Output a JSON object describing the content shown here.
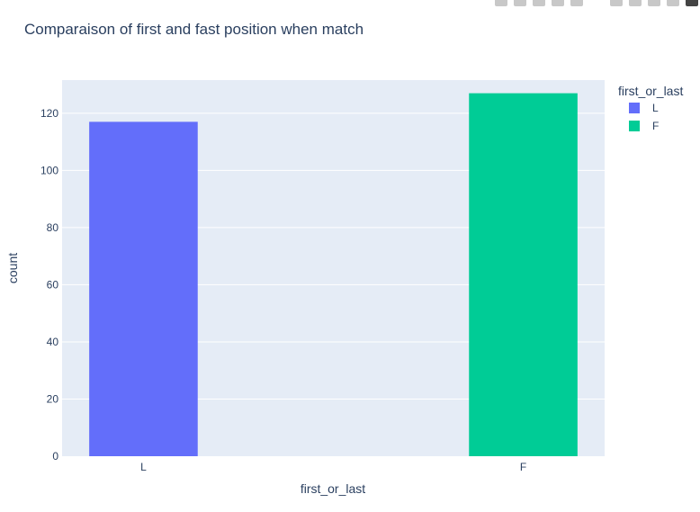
{
  "chart_data": {
    "type": "bar",
    "title": "Comparaison of first and fast position when match",
    "categories": [
      "L",
      "F"
    ],
    "series": [
      {
        "name": "L",
        "category": "L",
        "value": 117,
        "color": "#636efa"
      },
      {
        "name": "F",
        "category": "F",
        "value": 127,
        "color": "#00cc96"
      }
    ],
    "xlabel": "first_or_last",
    "ylabel": "count",
    "ylim": [
      0,
      131.6
    ],
    "yticks": [
      0,
      20,
      40,
      60,
      80,
      100,
      120
    ],
    "grid": true,
    "plot_bgcolor": "#e5ecf6",
    "legend": {
      "title": "first_or_last",
      "placement": "top-right"
    }
  },
  "modebar": {
    "icons": [
      "camera-icon",
      "zoom-icon",
      "pan-icon",
      "box-select-icon",
      "lasso-icon",
      "zoom-in-icon",
      "zoom-out-icon",
      "autoscale-icon",
      "home-icon",
      "plotly-logo-icon"
    ]
  }
}
